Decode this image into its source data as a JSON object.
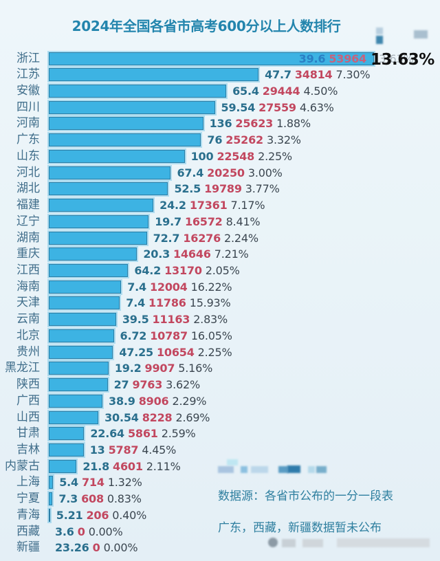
{
  "title": "2024年全国各省市高考600分以上人数排行",
  "highlight_overlay": "13.63%",
  "notes": {
    "source": "数据源：各省市公布的一分一段表",
    "missing": "广东，西藏，新疆数据暂未公布"
  },
  "colors": {
    "title": "#2385ad",
    "bar_fill": "#3db3e3",
    "bar_border": "#2b7ea6",
    "label": "#3f6d8a",
    "lead_value": "#2a6f8d",
    "count_value": "#c2475f",
    "percent_value": "#3b4650",
    "note": "#2e7f9f",
    "background": "#e9f3f8"
  },
  "chart_data": {
    "type": "bar",
    "orientation": "horizontal",
    "title": "2024年全国各省市高考600分以上人数排行",
    "xlabel": "",
    "ylabel": "",
    "grid": false,
    "legend": null,
    "categories": [
      "浙江",
      "江苏",
      "安徽",
      "四川",
      "河南",
      "广东",
      "山东",
      "河北",
      "湖北",
      "福建",
      "辽宁",
      "湖南",
      "重庆",
      "江西",
      "海南",
      "天津",
      "云南",
      "北京",
      "贵州",
      "黑龙江",
      "陕西",
      "广西",
      "山西",
      "甘肃",
      "吉林",
      "内蒙古",
      "上海",
      "宁夏",
      "青海",
      "西藏",
      "新疆"
    ],
    "series": [
      {
        "name": "600分以上人数",
        "values": [
          53964,
          34814,
          29444,
          27559,
          25623,
          25262,
          22548,
          20250,
          19789,
          17361,
          16572,
          16276,
          14646,
          13170,
          12004,
          11786,
          11163,
          10787,
          10654,
          9907,
          9763,
          8906,
          8228,
          5861,
          5787,
          4601,
          714,
          608,
          206,
          0,
          0
        ]
      }
    ],
    "lead_labels": [
      "39.6",
      "47.7",
      "65.4",
      "59.54",
      "136",
      "76",
      "100",
      "67.4",
      "52.5",
      "24.2",
      "19.7",
      "72.7",
      "20.3",
      "64.2",
      "7.4",
      "7.4",
      "39.5",
      "6.72",
      "47.25",
      "19.2",
      "27",
      "38.9",
      "30.54",
      "22.64",
      "13",
      "21.8",
      "5.4",
      "7.3",
      "5.21",
      "3.6",
      "23.26"
    ],
    "percent_labels": [
      "13.63%",
      "7.30%",
      "4.50%",
      "4.63%",
      "1.88%",
      "3.32%",
      "2.25%",
      "3.00%",
      "3.77%",
      "7.17%",
      "8.41%",
      "2.24%",
      "7.21%",
      "2.05%",
      "16.22%",
      "15.93%",
      "2.83%",
      "16.05%",
      "2.25%",
      "5.16%",
      "3.62%",
      "2.29%",
      "2.69%",
      "2.59%",
      "4.45%",
      "2.11%",
      "1.32%",
      "0.83%",
      "0.40%",
      "0.00%",
      "0.00%"
    ]
  }
}
